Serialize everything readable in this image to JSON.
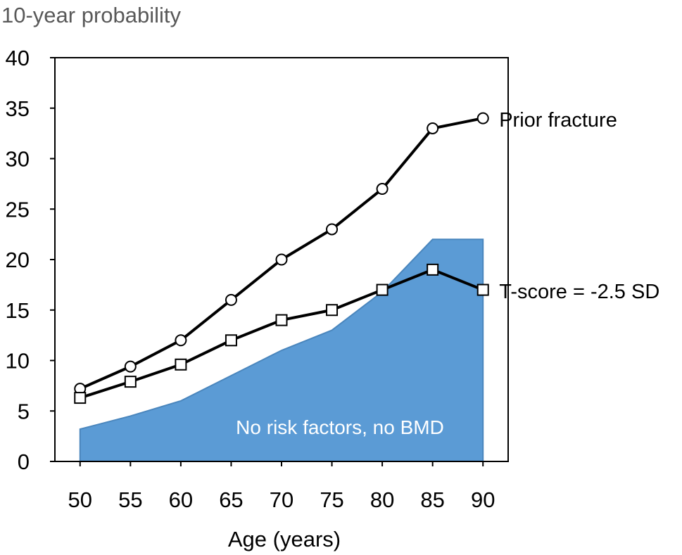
{
  "chart_data": {
    "type": "line",
    "ylabel": "10-year probability",
    "xlabel": "Age (years)",
    "x": [
      50,
      55,
      60,
      65,
      70,
      75,
      80,
      85,
      90
    ],
    "xlim": [
      47.5,
      92.5
    ],
    "ylim": [
      0,
      40
    ],
    "yticks": [
      0,
      5,
      10,
      15,
      20,
      25,
      30,
      35,
      40
    ],
    "grid": false,
    "legend": "none",
    "series": [
      {
        "name": "Prior fracture",
        "type": "line",
        "marker": "circle",
        "color": "#000000",
        "values": [
          7.2,
          9.4,
          12,
          16,
          20,
          23,
          27,
          33,
          34
        ]
      },
      {
        "name": "T-score = -2.5 SD",
        "type": "line",
        "marker": "square",
        "color": "#000000",
        "values": [
          6.3,
          7.9,
          9.6,
          12,
          14,
          15,
          17,
          19,
          17
        ]
      },
      {
        "name": "No risk factors, no BMD",
        "type": "area",
        "color": "#5b9bd5",
        "values": [
          3.2,
          4.5,
          6,
          8.5,
          11,
          13,
          16.8,
          22,
          22
        ]
      }
    ]
  }
}
